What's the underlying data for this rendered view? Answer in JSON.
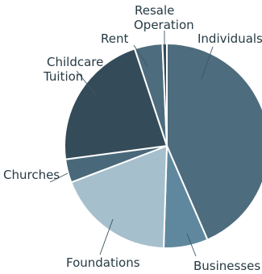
{
  "chart_data": {
    "type": "pie",
    "title": "",
    "slices": [
      {
        "label": "Individuals",
        "value": 43.5,
        "color": "#4d6c7e"
      },
      {
        "label": "Businesses",
        "value": 7.0,
        "color": "#5f889e"
      },
      {
        "label": "Foundations",
        "value": 18.7,
        "color": "#a5bfcc"
      },
      {
        "label": "Churches",
        "value": 3.7,
        "color": "#49697b"
      },
      {
        "label": "Childcare Tuition",
        "value": 22.0,
        "color": "#344b59"
      },
      {
        "label": "Rent",
        "value": 4.4,
        "color": "#4d6c7e"
      },
      {
        "label": "Resale Operation",
        "value": 0.7,
        "color": "#344b59"
      }
    ],
    "labels": {
      "individuals": "Individuals",
      "businesses": "Businesses",
      "foundations": "Foundations",
      "churches": "Churches",
      "childcare_line1": "Childcare",
      "childcare_line2": "Tuition",
      "rent": "Rent",
      "resale_line1": "Resale",
      "resale_line2": "Operation"
    },
    "legend": "none"
  }
}
